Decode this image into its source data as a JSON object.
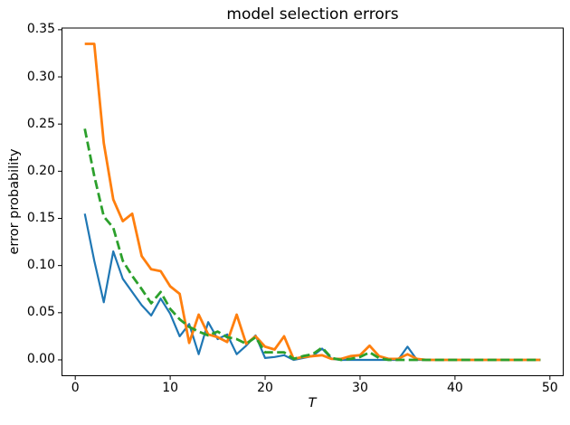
{
  "chart_data": {
    "type": "line",
    "title": "model selection errors",
    "xlabel": "T",
    "ylabel": "error probability",
    "grid": false,
    "legend": "none",
    "background": "#ffffff",
    "axis_color": "#000000",
    "xlim": [
      -1.4,
      51.4
    ],
    "ylim": [
      -0.0168,
      0.3518
    ],
    "xticks": [
      0,
      10,
      20,
      30,
      40,
      50
    ],
    "ytick_labels": [
      "0.00",
      "0.05",
      "0.10",
      "0.15",
      "0.20",
      "0.25",
      "0.30",
      "0.35"
    ],
    "yticks": [
      0.0,
      0.05,
      0.1,
      0.15,
      0.2,
      0.25,
      0.3,
      0.35
    ],
    "x": [
      1,
      2,
      3,
      4,
      5,
      6,
      7,
      8,
      9,
      10,
      11,
      12,
      13,
      14,
      15,
      16,
      17,
      18,
      19,
      20,
      21,
      22,
      23,
      24,
      25,
      26,
      27,
      28,
      29,
      30,
      31,
      32,
      33,
      34,
      35,
      36,
      37,
      38,
      39,
      40,
      41,
      42,
      43,
      44,
      45,
      46,
      47,
      48,
      49
    ],
    "series": [
      {
        "name": "blue-solid",
        "color": "#1f77b4",
        "style": "solid",
        "values": [
          0.155,
          0.105,
          0.061,
          0.115,
          0.086,
          0.072,
          0.058,
          0.047,
          0.065,
          0.049,
          0.025,
          0.038,
          0.006,
          0.04,
          0.022,
          0.027,
          0.006,
          0.015,
          0.026,
          0.002,
          0.003,
          0.005,
          0.0,
          0.002,
          0.004,
          0.012,
          0.001,
          0.0,
          0.0,
          0.0,
          0.0,
          0.0,
          0.0,
          0.0,
          0.014,
          0.0,
          0.0,
          0.0,
          0.0,
          0.0,
          0.0,
          0.0,
          0.0,
          0.0,
          0.0,
          0.0,
          0.0,
          0.0,
          0.0
        ]
      },
      {
        "name": "orange-solid",
        "color": "#ff7f0e",
        "style": "solid",
        "values": [
          0.335,
          0.335,
          0.23,
          0.17,
          0.147,
          0.155,
          0.11,
          0.096,
          0.094,
          0.078,
          0.07,
          0.018,
          0.048,
          0.027,
          0.024,
          0.019,
          0.048,
          0.017,
          0.025,
          0.014,
          0.011,
          0.025,
          0.001,
          0.003,
          0.004,
          0.005,
          0.001,
          0.001,
          0.004,
          0.005,
          0.015,
          0.004,
          0.001,
          0.001,
          0.006,
          0.001,
          0.0,
          0.0,
          0.0,
          0.0,
          0.0,
          0.0,
          0.0,
          0.0,
          0.0,
          0.0,
          0.0,
          0.0,
          0.0
        ]
      },
      {
        "name": "green-dashed",
        "color": "#2ca02c",
        "style": "dashed",
        "values": [
          0.245,
          0.195,
          0.152,
          0.14,
          0.105,
          0.089,
          0.075,
          0.06,
          0.072,
          0.054,
          0.043,
          0.035,
          0.03,
          0.026,
          0.03,
          0.024,
          0.022,
          0.017,
          0.024,
          0.008,
          0.008,
          0.008,
          0.001,
          0.004,
          0.006,
          0.013,
          0.002,
          0.0,
          0.001,
          0.003,
          0.008,
          0.002,
          0.0,
          0.0,
          0.0,
          0.0,
          0.0,
          0.0,
          0.0,
          0.0,
          0.0,
          0.0,
          0.0,
          0.0,
          0.0,
          0.0,
          0.0,
          0.0,
          0.0
        ]
      }
    ]
  }
}
